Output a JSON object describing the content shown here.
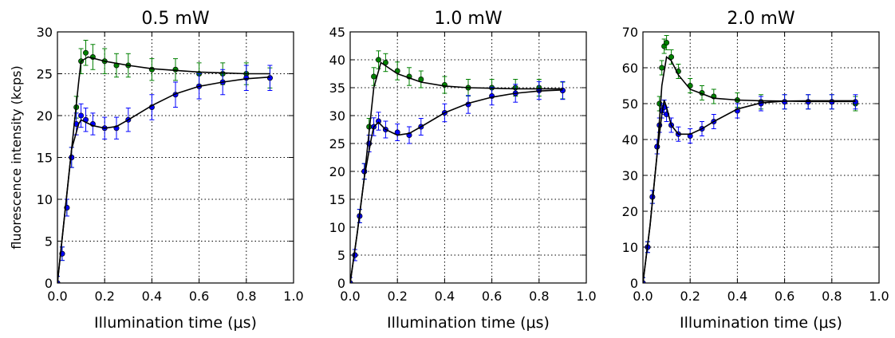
{
  "figure": {
    "ylabel": "fluorescence intensity (kcps)",
    "xlabel": "Illumination time ($\\mu$s)",
    "xlabel_display": "Illumination time (μs)"
  },
  "colors": {
    "series_green": "#008000",
    "series_blue": "#0000ff",
    "fit_line": "#000000",
    "grid": "#000000",
    "axes": "#000000"
  },
  "chart_data": [
    {
      "type": "scatter",
      "title": "0.5 mW",
      "xlabel": "Illumination time (μs)",
      "ylabel": "fluorescence intensity (kcps)",
      "xlim": [
        0.0,
        1.0
      ],
      "ylim": [
        0,
        30
      ],
      "xticks": [
        0.0,
        0.2,
        0.4,
        0.6,
        0.8,
        1.0
      ],
      "xtick_labels": [
        "0.0",
        "0.2",
        "0.4",
        "0.6",
        "0.8",
        "1.0"
      ],
      "yticks": [
        0,
        5,
        10,
        15,
        20,
        25,
        30
      ],
      "ytick_labels": [
        "0",
        "5",
        "10",
        "15",
        "20",
        "25",
        "30"
      ],
      "grid": true,
      "series": [
        {
          "color": "green",
          "x": [
            0.0,
            0.02,
            0.04,
            0.06,
            0.08,
            0.1,
            0.12,
            0.15,
            0.2,
            0.25,
            0.3,
            0.4,
            0.5,
            0.6,
            0.7,
            0.8,
            0.9
          ],
          "y": [
            0,
            3.5,
            9,
            15,
            21,
            26.5,
            27.5,
            27,
            26.5,
            26,
            26,
            25.5,
            25.5,
            25,
            25,
            25,
            24.5
          ],
          "error": [
            0.8,
            0.8,
            1,
            1.2,
            1.3,
            1.5,
            1.5,
            1.5,
            1.5,
            1.4,
            1.4,
            1.3,
            1.3,
            1.3,
            1.3,
            1.3,
            1.2
          ]
        },
        {
          "color": "blue",
          "x": [
            0.0,
            0.02,
            0.04,
            0.06,
            0.08,
            0.1,
            0.12,
            0.15,
            0.2,
            0.25,
            0.3,
            0.4,
            0.5,
            0.6,
            0.7,
            0.8,
            0.9
          ],
          "y": [
            0,
            3.5,
            9,
            15,
            19,
            20,
            19.5,
            19,
            18.5,
            18.5,
            19.5,
            21,
            22.5,
            23.5,
            24,
            24.5,
            24.5
          ],
          "error": [
            0.8,
            0.8,
            1,
            1.2,
            1.3,
            1.4,
            1.4,
            1.3,
            1.3,
            1.3,
            1.4,
            1.5,
            1.5,
            1.5,
            1.5,
            1.5,
            1.5
          ]
        }
      ],
      "fits": [
        {
          "color": "black",
          "x": [
            0.0,
            0.03,
            0.06,
            0.09,
            0.1,
            0.13,
            0.2,
            0.3,
            0.4,
            0.5,
            0.6,
            0.7,
            0.8,
            0.9
          ],
          "y": [
            0,
            8,
            16,
            24,
            26.5,
            27,
            26.5,
            26,
            25.6,
            25.4,
            25.2,
            25.1,
            25.0,
            25.0
          ]
        },
        {
          "color": "black",
          "x": [
            0.0,
            0.03,
            0.06,
            0.09,
            0.1,
            0.12,
            0.15,
            0.2,
            0.25,
            0.3,
            0.4,
            0.5,
            0.6,
            0.7,
            0.8,
            0.9
          ],
          "y": [
            0,
            8,
            16,
            19,
            19.5,
            19.2,
            18.8,
            18.5,
            18.7,
            19.5,
            21.2,
            22.6,
            23.5,
            24.0,
            24.4,
            24.6
          ]
        }
      ]
    },
    {
      "type": "scatter",
      "title": "1.0 mW",
      "xlabel": "Illumination time (μs)",
      "xlim": [
        0.0,
        1.0
      ],
      "ylim": [
        0,
        45
      ],
      "xticks": [
        0.0,
        0.2,
        0.4,
        0.6,
        0.8,
        1.0
      ],
      "xtick_labels": [
        "0.0",
        "0.2",
        "0.4",
        "0.6",
        "0.8",
        "1.0"
      ],
      "yticks": [
        0,
        5,
        10,
        15,
        20,
        25,
        30,
        35,
        40,
        45
      ],
      "ytick_labels": [
        "0",
        "5",
        "10",
        "15",
        "20",
        "25",
        "30",
        "35",
        "40",
        "45"
      ],
      "grid": true,
      "series": [
        {
          "color": "green",
          "x": [
            0.0,
            0.02,
            0.04,
            0.06,
            0.08,
            0.1,
            0.12,
            0.15,
            0.2,
            0.25,
            0.3,
            0.4,
            0.5,
            0.6,
            0.7,
            0.8,
            0.9
          ],
          "y": [
            0,
            5,
            12,
            20,
            28,
            37,
            40,
            39.5,
            38,
            37,
            36.5,
            35.5,
            35,
            35,
            35,
            35,
            34.5
          ],
          "error": [
            1,
            1,
            1.2,
            1.4,
            1.5,
            1.6,
            1.6,
            1.6,
            1.6,
            1.6,
            1.5,
            1.5,
            1.5,
            1.5,
            1.5,
            1.5,
            1.5
          ]
        },
        {
          "color": "blue",
          "x": [
            0.0,
            0.02,
            0.04,
            0.06,
            0.08,
            0.1,
            0.12,
            0.15,
            0.2,
            0.25,
            0.3,
            0.4,
            0.5,
            0.6,
            0.7,
            0.8,
            0.9
          ],
          "y": [
            0,
            5,
            12,
            20,
            25,
            28,
            29,
            27.5,
            27,
            26.5,
            28,
            30.5,
            32,
            33.5,
            34,
            34.5,
            34.5
          ],
          "error": [
            1,
            1,
            1.2,
            1.4,
            1.5,
            1.6,
            1.6,
            1.5,
            1.5,
            1.5,
            1.5,
            1.6,
            1.6,
            1.6,
            1.6,
            1.6,
            1.6
          ]
        }
      ],
      "fits": [
        {
          "color": "black",
          "x": [
            0.0,
            0.03,
            0.06,
            0.09,
            0.1,
            0.13,
            0.2,
            0.3,
            0.4,
            0.5,
            0.6,
            0.7,
            0.8,
            0.9
          ],
          "y": [
            0,
            9,
            19,
            31,
            35,
            39.5,
            37.5,
            36,
            35.3,
            35.0,
            34.9,
            34.8,
            34.8,
            34.8
          ]
        },
        {
          "color": "black",
          "x": [
            0.0,
            0.03,
            0.06,
            0.09,
            0.1,
            0.12,
            0.15,
            0.2,
            0.25,
            0.3,
            0.4,
            0.5,
            0.6,
            0.7,
            0.8,
            0.9
          ],
          "y": [
            0,
            9,
            19,
            26,
            28,
            28.8,
            27.5,
            26.5,
            26.8,
            28,
            30.5,
            32.2,
            33.3,
            34.0,
            34.4,
            34.6
          ]
        }
      ]
    },
    {
      "type": "scatter",
      "title": "2.0 mW",
      "xlabel": "Illumination time (μs)",
      "xlim": [
        0.0,
        1.0
      ],
      "ylim": [
        0,
        70
      ],
      "xticks": [
        0.0,
        0.2,
        0.4,
        0.6,
        0.8,
        1.0
      ],
      "xtick_labels": [
        "0.0",
        "0.2",
        "0.4",
        "0.6",
        "0.8",
        "1.0"
      ],
      "yticks": [
        0,
        10,
        20,
        30,
        40,
        50,
        60,
        70
      ],
      "ytick_labels": [
        "0",
        "10",
        "20",
        "30",
        "40",
        "50",
        "60",
        "70"
      ],
      "grid": true,
      "series": [
        {
          "color": "green",
          "x": [
            0.0,
            0.02,
            0.04,
            0.06,
            0.07,
            0.08,
            0.09,
            0.1,
            0.12,
            0.15,
            0.2,
            0.25,
            0.3,
            0.4,
            0.5,
            0.6,
            0.7,
            0.8,
            0.9
          ],
          "y": [
            0,
            10,
            24,
            38,
            50,
            60,
            66,
            67,
            63,
            59,
            55,
            53,
            52,
            51,
            50.5,
            50.5,
            50.5,
            50.5,
            50
          ],
          "error": [
            1.5,
            1.5,
            1.8,
            2,
            2,
            2,
            2,
            2,
            2,
            2,
            2,
            2,
            2,
            2,
            2,
            2,
            2,
            2,
            2
          ]
        },
        {
          "color": "blue",
          "x": [
            0.0,
            0.02,
            0.04,
            0.06,
            0.07,
            0.08,
            0.09,
            0.1,
            0.12,
            0.15,
            0.2,
            0.25,
            0.3,
            0.4,
            0.5,
            0.6,
            0.7,
            0.8,
            0.9
          ],
          "y": [
            0,
            10,
            24,
            38,
            44,
            48,
            49,
            47,
            44,
            41.5,
            41,
            43,
            45,
            48,
            50,
            50.5,
            50.5,
            50.5,
            50.5
          ],
          "error": [
            1.5,
            1.5,
            1.8,
            2,
            2,
            2,
            2,
            2,
            2,
            2,
            2,
            2,
            2,
            2,
            2,
            2,
            2,
            2,
            2
          ]
        }
      ],
      "fits": [
        {
          "color": "black",
          "x": [
            0.0,
            0.03,
            0.06,
            0.08,
            0.1,
            0.12,
            0.15,
            0.2,
            0.3,
            0.4,
            0.5,
            0.6,
            0.7,
            0.8,
            0.9
          ],
          "y": [
            0,
            16,
            36,
            55,
            63,
            62,
            58,
            54,
            51.5,
            51,
            50.8,
            50.7,
            50.6,
            50.6,
            50.6
          ]
        },
        {
          "color": "black",
          "x": [
            0.0,
            0.03,
            0.06,
            0.08,
            0.09,
            0.1,
            0.12,
            0.15,
            0.2,
            0.25,
            0.3,
            0.4,
            0.5,
            0.6,
            0.7,
            0.8,
            0.9
          ],
          "y": [
            0,
            16,
            36,
            47,
            51,
            49,
            44,
            41.5,
            41.5,
            43,
            45,
            48.5,
            50.2,
            50.7,
            50.8,
            50.8,
            50.8
          ]
        }
      ]
    }
  ]
}
